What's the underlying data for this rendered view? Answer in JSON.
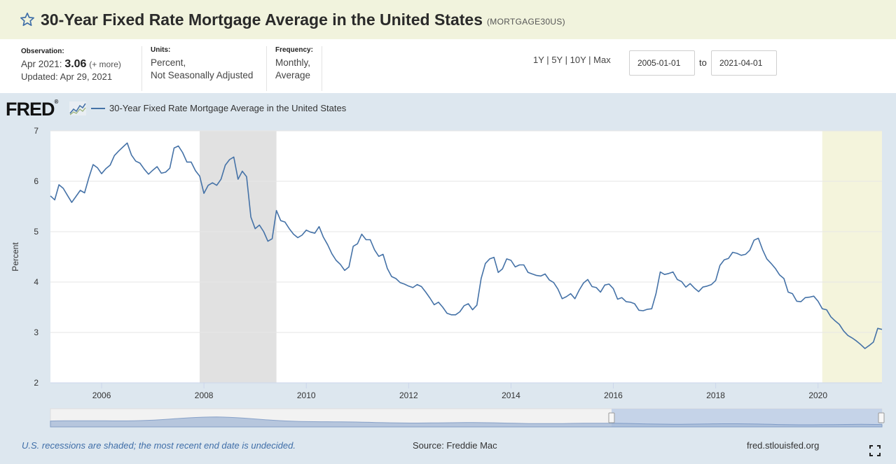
{
  "header": {
    "title": "30-Year Fixed Rate Mortgage Average in the United States",
    "series_id": "(MORTGAGE30US)"
  },
  "meta": {
    "observation_label": "Observation:",
    "observation_date": "Apr 2021:",
    "observation_value": "3.06",
    "observation_more": "(+ more)",
    "updated": "Updated: Apr 29, 2021",
    "units_label": "Units:",
    "units_line1": "Percent,",
    "units_line2": "Not Seasonally Adjusted",
    "frequency_label": "Frequency:",
    "frequency_line1": "Monthly,",
    "frequency_line2": "Average"
  },
  "range": {
    "links": [
      "1Y",
      "5Y",
      "10Y",
      "Max"
    ],
    "separator": "|",
    "start": "2005-01-01",
    "to_label": "to",
    "end": "2021-04-01"
  },
  "logo": {
    "text": "FRED",
    "mark": "®"
  },
  "footer": {
    "note": "U.S. recessions are shaded; the most recent end date is undecided.",
    "source": "Source: Freddie Mac",
    "site": "fred.stlouisfed.org"
  },
  "colors": {
    "line": "#4572a7",
    "recession": "#e1e1e1",
    "recent_recession": "#f4f4dc",
    "navigator_fill": "#a8bcd8",
    "navigator_selected": "#c5d3e8"
  },
  "chart_data": {
    "type": "line",
    "title": "",
    "xlabel": "",
    "ylabel": "Percent",
    "xlim": [
      "2005-01",
      "2021-04"
    ],
    "ylim": [
      2,
      7
    ],
    "y_ticks": [
      2,
      3,
      4,
      5,
      6,
      7
    ],
    "x_ticks": [
      "2006",
      "2008",
      "2010",
      "2012",
      "2014",
      "2016",
      "2018",
      "2020"
    ],
    "grid": "horizontal",
    "legend": "top-left",
    "legend_entries": [
      "30-Year Fixed Rate Mortgage Average in the United States"
    ],
    "recessions": [
      {
        "start": "2007-12",
        "end": "2009-06"
      },
      {
        "start": "2020-02",
        "end": "2021-04"
      }
    ],
    "series": [
      {
        "name": "30-Year Fixed Rate Mortgage Average in the United States",
        "start": "2005-01",
        "frequency": "monthly",
        "values": [
          5.71,
          5.63,
          5.93,
          5.86,
          5.72,
          5.58,
          5.7,
          5.82,
          5.77,
          6.07,
          6.33,
          6.27,
          6.15,
          6.25,
          6.32,
          6.51,
          6.6,
          6.68,
          6.76,
          6.52,
          6.4,
          6.36,
          6.24,
          6.14,
          6.22,
          6.29,
          6.16,
          6.18,
          6.26,
          6.66,
          6.7,
          6.57,
          6.38,
          6.38,
          6.21,
          6.1,
          5.76,
          5.92,
          5.97,
          5.92,
          6.04,
          6.32,
          6.43,
          6.48,
          6.04,
          6.2,
          6.09,
          5.29,
          5.06,
          5.13,
          5.0,
          4.81,
          4.86,
          5.42,
          5.22,
          5.19,
          5.06,
          4.95,
          4.88,
          4.93,
          5.03,
          4.99,
          4.97,
          5.1,
          4.89,
          4.74,
          4.56,
          4.43,
          4.35,
          4.23,
          4.3,
          4.71,
          4.76,
          4.95,
          4.84,
          4.84,
          4.64,
          4.51,
          4.55,
          4.27,
          4.11,
          4.07,
          3.99,
          3.96,
          3.92,
          3.89,
          3.95,
          3.91,
          3.8,
          3.68,
          3.55,
          3.6,
          3.5,
          3.38,
          3.35,
          3.35,
          3.41,
          3.53,
          3.57,
          3.45,
          3.54,
          4.07,
          4.37,
          4.46,
          4.49,
          4.19,
          4.26,
          4.46,
          4.43,
          4.3,
          4.34,
          4.34,
          4.19,
          4.16,
          4.13,
          4.12,
          4.16,
          4.04,
          3.99,
          3.86,
          3.67,
          3.71,
          3.77,
          3.67,
          3.84,
          3.98,
          4.05,
          3.91,
          3.89,
          3.8,
          3.94,
          3.96,
          3.87,
          3.66,
          3.69,
          3.61,
          3.6,
          3.57,
          3.44,
          3.43,
          3.46,
          3.47,
          3.77,
          4.2,
          4.15,
          4.17,
          4.2,
          4.05,
          4.01,
          3.9,
          3.97,
          3.88,
          3.81,
          3.9,
          3.92,
          3.95,
          4.03,
          4.33,
          4.44,
          4.47,
          4.59,
          4.57,
          4.53,
          4.55,
          4.63,
          4.83,
          4.87,
          4.64,
          4.46,
          4.37,
          4.27,
          4.14,
          4.07,
          3.8,
          3.77,
          3.62,
          3.61,
          3.69,
          3.7,
          3.72,
          3.62,
          3.47,
          3.45,
          3.31,
          3.23,
          3.16,
          3.03,
          2.94,
          2.89,
          2.83,
          2.76,
          2.68,
          2.74,
          2.81,
          3.08,
          3.06
        ]
      }
    ]
  }
}
